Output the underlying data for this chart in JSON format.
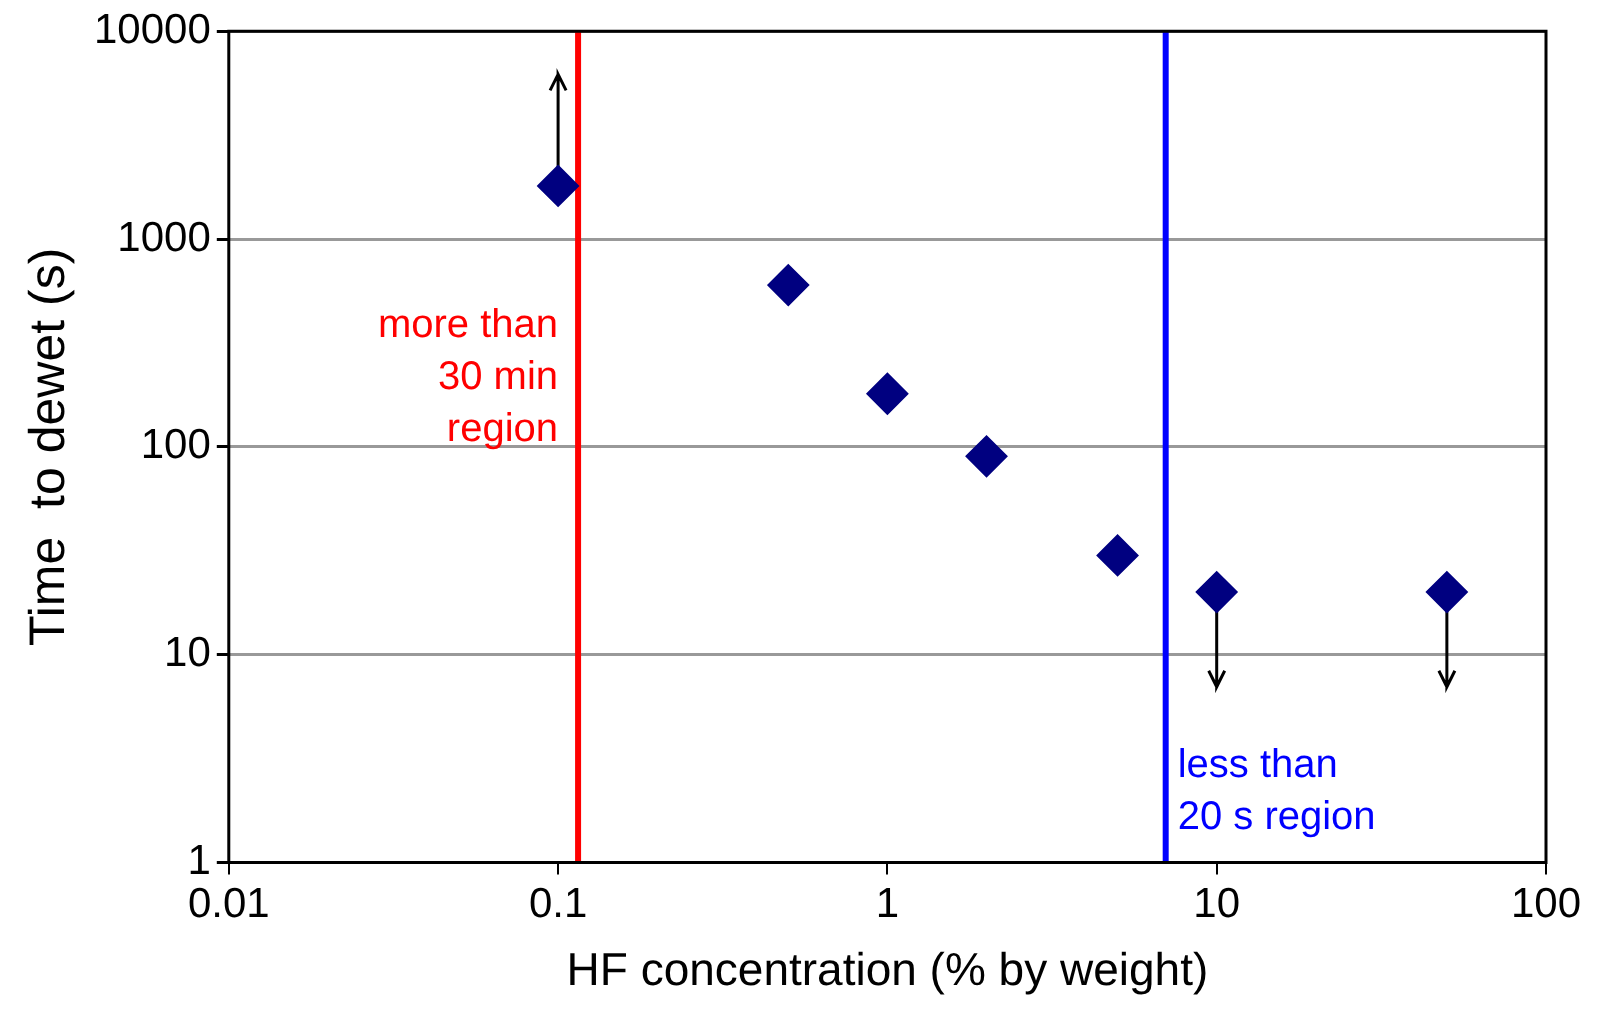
{
  "chart_data": {
    "type": "scatter",
    "xlabel": "HF concentration (% by weight)",
    "ylabel": "Time  to dewet (s)",
    "x": [
      0.1,
      0.5,
      1,
      2,
      5,
      10,
      50
    ],
    "series": [
      {
        "color": "#000080",
        "values": [
          1800,
          600,
          180,
          90,
          30,
          20,
          20
        ],
        "errors": [
          [
            1800,
            6200
          ],
          null,
          null,
          null,
          null,
          [
            7,
            20
          ],
          [
            7,
            20
          ]
        ]
      }
    ],
    "log": "xy",
    "xlim": [
      0.01,
      100
    ],
    "xticks": [
      0.01,
      0.1,
      1,
      10,
      100
    ],
    "ylim": [
      1,
      10000
    ],
    "yticks": [
      1,
      10,
      100,
      1000,
      10000
    ],
    "grid": "y",
    "marker": "diamond",
    "ref_lines": [
      {
        "axis": "x",
        "value": 0.115,
        "label": "more than 30 min region",
        "color": "#ff0000"
      },
      {
        "axis": "x",
        "value": 7,
        "label": "less than 20 s region",
        "color": "#0000ff"
      }
    ]
  }
}
